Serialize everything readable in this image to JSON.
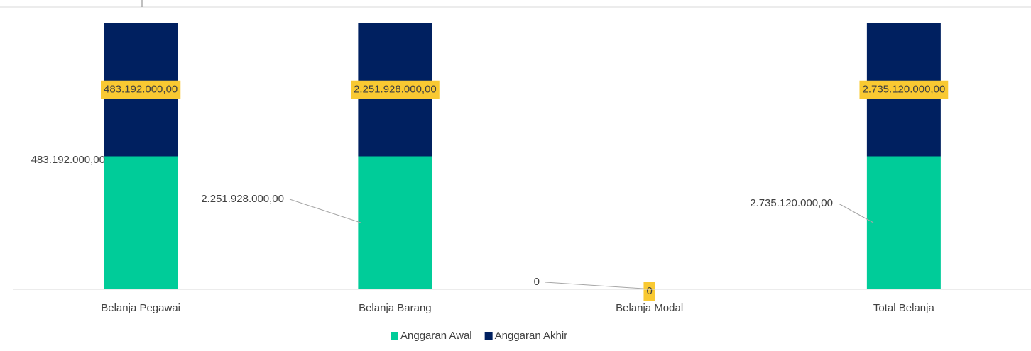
{
  "chart_data": {
    "type": "bar",
    "stacked": true,
    "percent": true,
    "categories": [
      "Belanja Pegawai",
      "Belanja Barang",
      "Belanja Modal",
      "Total Belanja"
    ],
    "series": [
      {
        "name": "Anggaran Awal",
        "color": "#00cc99",
        "values": [
          483192000,
          2251928000,
          0,
          2735120000
        ],
        "value_labels": [
          "483.192.000,00",
          "2.251.928.000,00",
          "0",
          "2.735.120.000,00"
        ]
      },
      {
        "name": "Anggaran Akhir",
        "color": "#002060",
        "values": [
          483192000,
          2251928000,
          0,
          2735120000
        ],
        "value_labels": [
          "483.192.000,00",
          "2.251.928.000,00",
          "0",
          "2.735.120.000,00"
        ]
      }
    ]
  }
}
